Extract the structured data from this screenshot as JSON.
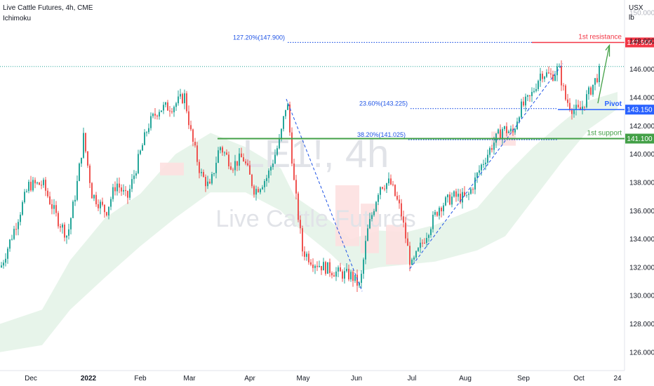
{
  "header": {
    "symbol_line": "Live Cattle Futures, 4h, CME",
    "indicator": "Ichimoku"
  },
  "watermark": {
    "ticker": "LE1!, 4h",
    "name": "Live Cattle Futures"
  },
  "axis": {
    "currency": "USX",
    "unit": "lb"
  },
  "colors": {
    "up": "#26a69a",
    "down": "#ef5350",
    "resistance": "#f23645",
    "pivot": "#2962ff",
    "support": "#43a047",
    "fib": "#1e53e5",
    "cloud_bull": "#e3f2e6",
    "cloud_bear": "#fde0e0"
  },
  "chart_data": {
    "type": "candlestick",
    "title": "Live Cattle Futures, 4h, CME",
    "ylim": [
      124.7,
      150.9
    ],
    "y_ticks": [
      "126.000",
      "128.000",
      "130.000",
      "132.000",
      "134.000",
      "136.000",
      "138.000",
      "140.000",
      "142.000",
      "144.000",
      "146.000",
      "148.000",
      "150.000"
    ],
    "x_ticks": [
      "Dec",
      "2022",
      "Feb",
      "Mar",
      "Apr",
      "May",
      "Jun",
      "Jul",
      "Aug",
      "Sep",
      "Oct",
      "24"
    ],
    "price_path": [
      [
        0,
        132.0
      ],
      [
        20,
        134.8
      ],
      [
        40,
        137.8
      ],
      [
        60,
        137.9
      ],
      [
        80,
        135.5
      ],
      [
        95,
        134.2
      ],
      [
        108,
        137.6
      ],
      [
        118,
        141.2
      ],
      [
        130,
        137.2
      ],
      [
        150,
        135.9
      ],
      [
        165,
        138.0
      ],
      [
        180,
        136.8
      ],
      [
        195,
        139.4
      ],
      [
        210,
        142.0
      ],
      [
        225,
        143.2
      ],
      [
        245,
        143.4
      ],
      [
        262,
        144.1
      ],
      [
        272,
        141.2
      ],
      [
        285,
        138.6
      ],
      [
        298,
        137.6
      ],
      [
        312,
        140.6
      ],
      [
        330,
        139.2
      ],
      [
        345,
        139.8
      ],
      [
        362,
        137.4
      ],
      [
        380,
        138.4
      ],
      [
        398,
        141.0
      ],
      [
        408,
        143.9
      ],
      [
        418,
        138.0
      ],
      [
        430,
        133.2
      ],
      [
        445,
        132.4
      ],
      [
        462,
        132.0
      ],
      [
        480,
        131.6
      ],
      [
        500,
        131.4
      ],
      [
        512,
        130.6
      ],
      [
        522,
        134.4
      ],
      [
        540,
        137.8
      ],
      [
        555,
        138.0
      ],
      [
        570,
        136.0
      ],
      [
        585,
        132.0
      ],
      [
        605,
        134.2
      ],
      [
        625,
        136.3
      ],
      [
        645,
        137.0
      ],
      [
        665,
        136.9
      ],
      [
        685,
        139.2
      ],
      [
        700,
        140.6
      ],
      [
        715,
        141.8
      ],
      [
        730,
        141.5
      ],
      [
        740,
        143.2
      ],
      [
        755,
        144.0
      ],
      [
        770,
        145.8
      ],
      [
        785,
        145.5
      ],
      [
        795,
        146.1
      ],
      [
        805,
        143.9
      ],
      [
        815,
        143.2
      ],
      [
        825,
        143.0
      ],
      [
        838,
        144.3
      ],
      [
        855,
        146.0
      ]
    ],
    "cloud_upper": [
      [
        0,
        128.0
      ],
      [
        60,
        129.0
      ],
      [
        100,
        132.5
      ],
      [
        150,
        135.5
      ],
      [
        200,
        137.2
      ],
      [
        250,
        140.0
      ],
      [
        300,
        141.5
      ],
      [
        350,
        140.5
      ],
      [
        400,
        139.0
      ],
      [
        420,
        137.0
      ],
      [
        470,
        135.3
      ],
      [
        500,
        134.0
      ],
      [
        540,
        134.6
      ],
      [
        580,
        134.5
      ],
      [
        620,
        135.0
      ],
      [
        680,
        136.2
      ],
      [
        720,
        138.5
      ],
      [
        760,
        140.5
      ],
      [
        800,
        142.2
      ],
      [
        840,
        143.8
      ],
      [
        880,
        144.4
      ]
    ],
    "cloud_lower": [
      [
        0,
        126.0
      ],
      [
        60,
        126.5
      ],
      [
        100,
        129.0
      ],
      [
        150,
        131.3
      ],
      [
        200,
        133.5
      ],
      [
        250,
        135.5
      ],
      [
        300,
        137.3
      ],
      [
        350,
        137.3
      ],
      [
        400,
        136.0
      ],
      [
        420,
        135.0
      ],
      [
        470,
        133.0
      ],
      [
        500,
        131.6
      ],
      [
        540,
        132.0
      ],
      [
        580,
        132.2
      ],
      [
        620,
        132.4
      ],
      [
        680,
        133.2
      ],
      [
        720,
        134.2
      ],
      [
        760,
        136.8
      ],
      [
        800,
        139.4
      ],
      [
        840,
        141.8
      ],
      [
        880,
        143.2
      ]
    ],
    "levels": [
      {
        "name": "1st resistance",
        "value": 147.9,
        "value_label": "147.900",
        "color": "#f23645"
      },
      {
        "name": "Pivot",
        "value": 143.15,
        "value_label": "143.150",
        "color": "#2962ff"
      },
      {
        "name": "1st support",
        "value": 141.1,
        "value_label": "141.100",
        "color": "#43a047"
      }
    ],
    "fib_levels": [
      {
        "label": "127.20%(147.900)",
        "value": 147.9
      },
      {
        "label": "23.60%(143.225)",
        "value": 143.225
      },
      {
        "label": "38.20%(141.025)",
        "value": 141.025
      }
    ],
    "last_price": 146.2
  }
}
